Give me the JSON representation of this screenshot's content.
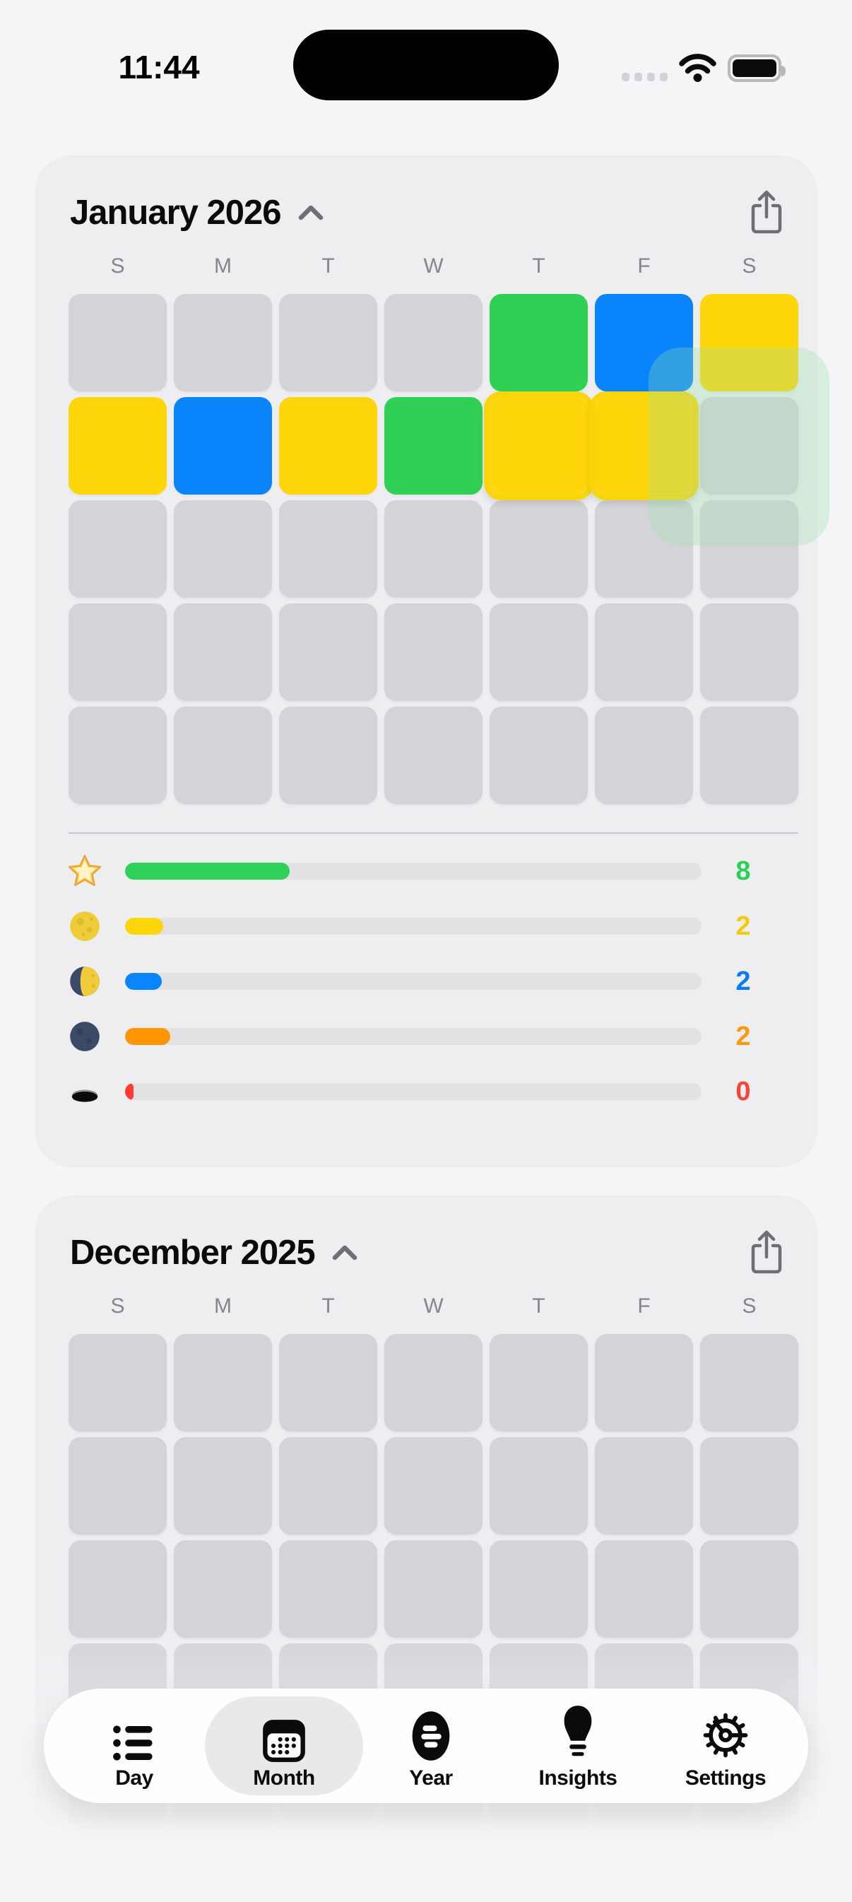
{
  "status_bar": {
    "time": "11:44"
  },
  "colors": {
    "page_bg": "#F5F5F7",
    "card_bg": "#EEEEF1",
    "cell_gray": "#D4D4D8",
    "cell_green": "#2FD055",
    "cell_blue": "#0A84FB",
    "cell_yellow": "#FFD60A",
    "bar_track": "#E2E2E5",
    "selection_yellow": "#FAD400",
    "drag_ghost_green": "#96E1AA"
  },
  "cards": [
    {
      "id": "jan",
      "title": "January 2026",
      "collapse_icon": "chevron-up-icon",
      "share_icon": "share-icon",
      "day_headers": [
        "S",
        "M",
        "T",
        "W",
        "T",
        "F",
        "S"
      ],
      "grid": [
        [
          "empty",
          "empty",
          "empty",
          "empty",
          "green",
          "blue",
          "yellow"
        ],
        [
          "yellow",
          "blue",
          "yellow",
          "green",
          "yellow",
          "yellow",
          "empty"
        ],
        [
          "empty",
          "empty",
          "empty",
          "empty",
          "empty",
          "empty",
          "empty"
        ],
        [
          "empty",
          "empty",
          "empty",
          "empty",
          "empty",
          "empty",
          "empty"
        ],
        [
          "empty",
          "empty",
          "empty",
          "empty",
          "empty",
          "empty",
          "empty"
        ]
      ],
      "overlays": {
        "selected_day_cells": [
          {
            "row": 1,
            "col": 4
          },
          {
            "row": 1,
            "col": 5
          }
        ],
        "drag_ghost": {
          "over_col": 6,
          "rows": "1 to 3",
          "color": "green-translucent"
        }
      },
      "legend": [
        {
          "icon": "star-emoji",
          "bar_color": "#2FD158",
          "fill_pct": 28.5,
          "count": "8",
          "count_color": "#2FCE5B"
        },
        {
          "icon": "full-moon-emoji",
          "bar_color": "#FFD60A",
          "fill_pct": 6.6,
          "count": "2",
          "count_color": "#F2CB10"
        },
        {
          "icon": "first-quarter-moon-emoji",
          "bar_color": "#0A84FF",
          "fill_pct": 6.4,
          "count": "2",
          "count_color": "#0A7BF6"
        },
        {
          "icon": "new-moon-emoji",
          "bar_color": "#FF9500",
          "fill_pct": 7.8,
          "count": "2",
          "count_color": "#FB9A0C"
        },
        {
          "icon": "hole-emoji",
          "bar_color": "#FF3B30",
          "fill_pct": 1.4,
          "count": "0",
          "count_color": "#F64438"
        }
      ]
    },
    {
      "id": "dec",
      "title": "December 2025",
      "collapse_icon": "chevron-up-icon",
      "share_icon": "share-icon",
      "day_headers": [
        "S",
        "M",
        "T",
        "W",
        "T",
        "F",
        "S"
      ],
      "grid": [
        [
          "empty",
          "empty",
          "empty",
          "empty",
          "empty",
          "empty",
          "empty"
        ],
        [
          "empty",
          "empty",
          "empty",
          "empty",
          "empty",
          "empty",
          "empty"
        ],
        [
          "empty",
          "empty",
          "empty",
          "empty",
          "empty",
          "empty",
          "empty"
        ],
        [
          "empty",
          "empty",
          "empty",
          "empty",
          "empty",
          "empty",
          "empty"
        ],
        [
          "empty",
          "empty",
          "empty",
          "empty",
          "empty",
          "empty",
          "empty"
        ]
      ],
      "legend": []
    }
  ],
  "tab_bar": {
    "active": "Month",
    "items": [
      {
        "label": "Day",
        "icon": "list-icon",
        "active": false
      },
      {
        "label": "Month",
        "icon": "calendar-icon",
        "active": true
      },
      {
        "label": "Year",
        "icon": "year-oval-icon",
        "active": false
      },
      {
        "label": "Insights",
        "icon": "lightbulb-icon",
        "active": false
      },
      {
        "label": "Settings",
        "icon": "gear-icon",
        "active": false
      }
    ]
  }
}
